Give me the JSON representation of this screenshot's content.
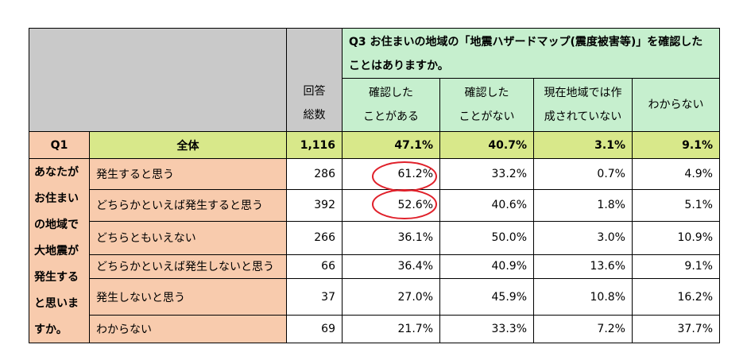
{
  "chart_data": {
    "type": "table",
    "question_header": "Q3 お住まいの地域の「地震ハザードマップ(震度被害等)」を確認したことはありますか。",
    "question_header_line1": "Q3 お住まいの地域の「地震ハザードマップ(震度被害等)」を確認した",
    "question_header_line2": "ことはありますか。",
    "respondents_header_line1": "回答",
    "respondents_header_line2": "総数",
    "columns": [
      {
        "line1": "確認した",
        "line2": "ことがある"
      },
      {
        "line1": "確認した",
        "line2": "ことがない"
      },
      {
        "line1": "現在地域では作",
        "line2": "成されていない"
      },
      {
        "line1": "わからない",
        "line2": ""
      }
    ],
    "row_group_label": "Q1",
    "row_group_question_lines": [
      "あなたが",
      "お住まい",
      "の地域で",
      "大地震が",
      "発生する",
      "と思いま",
      "すか。"
    ],
    "total_row": {
      "label": "全体",
      "n": "1,116",
      "values": [
        "47.1%",
        "40.7%",
        "3.1%",
        "9.1%"
      ]
    },
    "rows": [
      {
        "label": "発生すると思う",
        "n": "286",
        "values": [
          "61.2%",
          "33.2%",
          "0.7%",
          "4.9%"
        ]
      },
      {
        "label": "どちらかといえば発生すると思う",
        "n": "392",
        "values": [
          "52.6%",
          "40.6%",
          "1.8%",
          "5.1%"
        ]
      },
      {
        "label": "どちらともいえない",
        "n": "266",
        "values": [
          "36.1%",
          "50.0%",
          "3.0%",
          "10.9%"
        ]
      },
      {
        "label": "どちらかといえば発生しないと思う",
        "n": "66",
        "values": [
          "36.4%",
          "40.9%",
          "13.6%",
          "9.1%"
        ]
      },
      {
        "label": "発生しないと思う",
        "n": "37",
        "values": [
          "27.0%",
          "45.9%",
          "10.8%",
          "16.2%"
        ]
      },
      {
        "label": "わからない",
        "n": "69",
        "values": [
          "21.7%",
          "33.3%",
          "7.2%",
          "37.7%"
        ]
      }
    ],
    "highlighted_cells": [
      {
        "row": 0,
        "col": 0,
        "value": "61.2%"
      },
      {
        "row": 1,
        "col": 0,
        "value": "52.6%"
      }
    ],
    "colors": {
      "header_gray": "#c9c9c9",
      "header_green": "#c6efce",
      "total_row_lime": "#d8e88a",
      "row_label_peach": "#f8cbad",
      "highlight_circle": "#e0202a"
    }
  }
}
